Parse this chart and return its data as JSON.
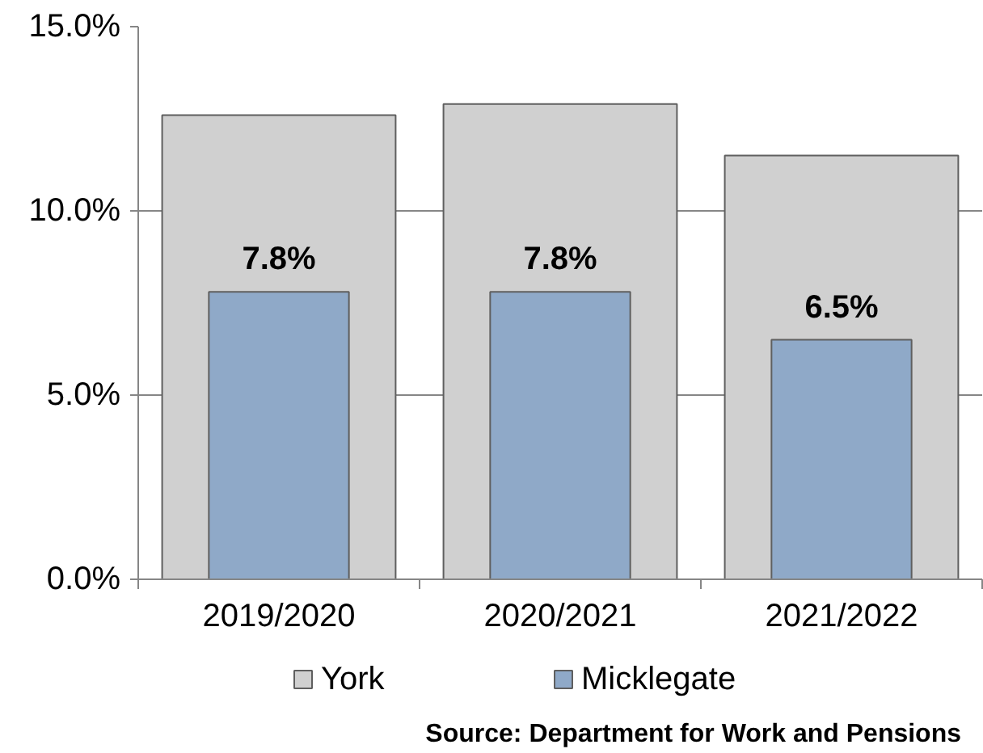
{
  "chart_data": {
    "type": "bar",
    "categories": [
      "2019/2020",
      "2020/2021",
      "2021/2022"
    ],
    "series": [
      {
        "name": "York",
        "color": "#d0d0d0",
        "values": [
          12.6,
          12.9,
          11.5
        ]
      },
      {
        "name": "Micklegate",
        "color": "#8fa9c8",
        "values": [
          7.8,
          7.8,
          6.5
        ],
        "value_labels": [
          "7.8%",
          "7.8%",
          "6.5%"
        ]
      }
    ],
    "ylim": [
      0,
      15
    ],
    "yticks": [
      {
        "value": 0,
        "label": "0.0%"
      },
      {
        "value": 5,
        "label": "5.0%"
      },
      {
        "value": 10,
        "label": "10.0%"
      },
      {
        "value": 15,
        "label": "15.0%"
      }
    ],
    "grid": "y",
    "legend": "bottom",
    "annotations": [
      "Source: Department for Work and Pensions"
    ]
  }
}
